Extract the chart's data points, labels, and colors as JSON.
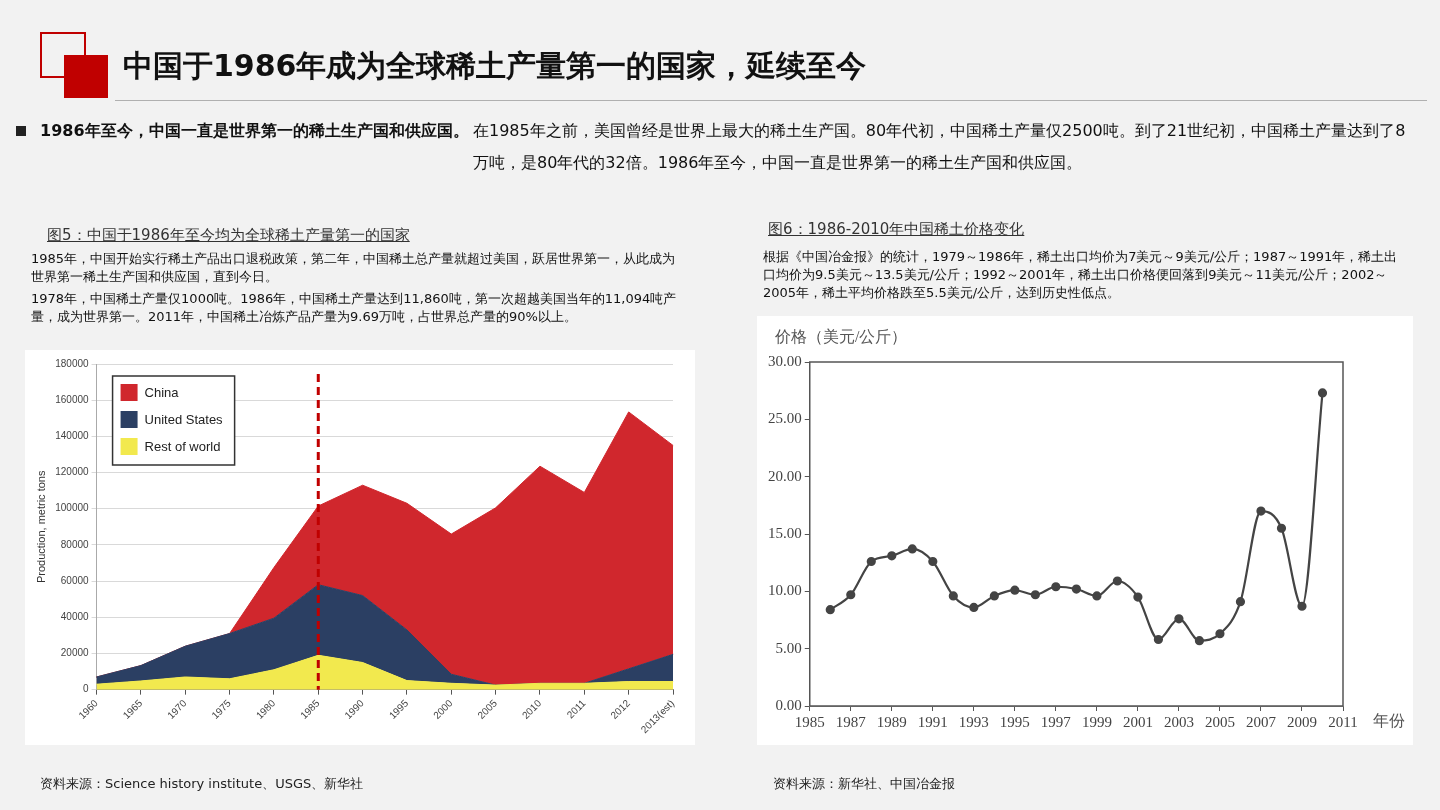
{
  "chart_data": [
    {
      "type": "other",
      "title": "中国于1986年成为全球稀土产量第一的国家，延续至今",
      "annotations": [
        "1986年至今，中国一直是世界第一的稀土生产国和供应国。",
        "在1985年之前，美国曾经是世界上最大的稀土生产国。80年代初，中国稀土产量仅2500吨。到了21世纪初，中国稀土产量达到了8万吨，是80年代的32倍。1986年至今，中国一直是世界第一的稀土生产国和供应国。"
      ]
    },
    {
      "type": "area",
      "stacked": true,
      "title": "图5：中国于1986年至今均为全球稀土产量第一的国家",
      "ylabel": "Production, metric tons",
      "categories": [
        "1960",
        "1965",
        "1970",
        "1975",
        "1980",
        "1985",
        "1990",
        "1995",
        "2000",
        "2005",
        "2010",
        "2011",
        "2012",
        "2013(est)"
      ],
      "series": [
        {
          "name": "Rest of world",
          "color": "#f2e94e",
          "values": [
            3000,
            4800,
            7000,
            6000,
            11000,
            19000,
            15000,
            5000,
            3500,
            2500,
            3500,
            3500,
            4500,
            4500
          ]
        },
        {
          "name": "United States",
          "color": "#2b3f63",
          "values": [
            4000,
            8500,
            17000,
            25000,
            28500,
            39000,
            37000,
            28000,
            5000,
            0,
            0,
            0,
            7000,
            15000
          ]
        },
        {
          "name": "China",
          "color": "#d0272d",
          "values": [
            0,
            0,
            0,
            0,
            28000,
            43500,
            61000,
            70000,
            77500,
            98000,
            120000,
            105500,
            142000,
            115500
          ]
        }
      ],
      "ylim": [
        0,
        180000
      ],
      "yticks": [
        0,
        20000,
        40000,
        60000,
        80000,
        100000,
        120000,
        140000,
        160000,
        180000
      ],
      "grid": "y",
      "legend": "top left",
      "ref_lines": [
        {
          "axis": "x",
          "value": "1985",
          "color": "#c00000",
          "line_style": "dashed"
        }
      ],
      "annotations": [
        "1985年，中国开始实行稀土产品出口退税政策，第二年，中国稀土总产量就超过美国，跃居世界第一，从此成为世界第一稀土生产国和供应国，直到今日。",
        "1978年，中国稀土产量仅1000吨。1986年，中国稀土产量达到11,860吨，第一次超越美国当年的11,094吨产量，成为世界第一。2011年，中国稀土冶炼产品产量为9.69万吨，占世界总产量的90%以上。",
        "资料来源：Science history institute、USGS、新华社"
      ]
    },
    {
      "type": "line",
      "title": "图6：1986-2010年中国稀土价格变化",
      "ylabel": "价格（美元/公斤）",
      "xlabel": "年份",
      "x": [
        1986,
        1987,
        1988,
        1989,
        1990,
        1991,
        1992,
        1993,
        1994,
        1995,
        1996,
        1997,
        1998,
        1999,
        2000,
        2001,
        2002,
        2003,
        2004,
        2005,
        2006,
        2007,
        2008,
        2009,
        2010
      ],
      "series": [
        {
          "color": "#444444",
          "values": [
            8.4,
            9.7,
            12.6,
            13.1,
            13.7,
            12.6,
            9.6,
            8.6,
            9.6,
            10.1,
            9.7,
            10.4,
            10.2,
            9.6,
            10.9,
            9.5,
            5.8,
            7.6,
            5.7,
            6.3,
            9.1,
            17,
            15.5,
            8.7,
            27.3
          ]
        }
      ],
      "xlim": [
        1985,
        2011
      ],
      "xticks": [
        1985,
        1987,
        1989,
        1991,
        1993,
        1995,
        1997,
        1999,
        2001,
        2003,
        2005,
        2007,
        2009,
        2011
      ],
      "ylim": [
        0,
        30
      ],
      "yticks": [
        {
          "value": 0,
          "label": "0.00"
        },
        {
          "value": 5,
          "label": "5.00"
        },
        {
          "value": 10,
          "label": "10.00"
        },
        {
          "value": 15,
          "label": "15.00"
        },
        {
          "value": 20,
          "label": "20.00"
        },
        {
          "value": 25,
          "label": "25.00"
        },
        {
          "value": 30,
          "label": "30.00"
        }
      ],
      "marker": "circle",
      "grid": false,
      "annotations": [
        "根据《中国冶金报》的统计，1979～1986年，稀土出口均价为7美元～9美元/公斤；1987～1991年，稀土出口均价为9.5美元～13.5美元/公斤；1992～2001年，稀土出口价格便回落到9美元～11美元/公斤；2002～2005年，稀土平均价格跌至5.5美元/公斤，达到历史性低点。",
        "资料来源：新华社、中国冶金报"
      ]
    }
  ]
}
